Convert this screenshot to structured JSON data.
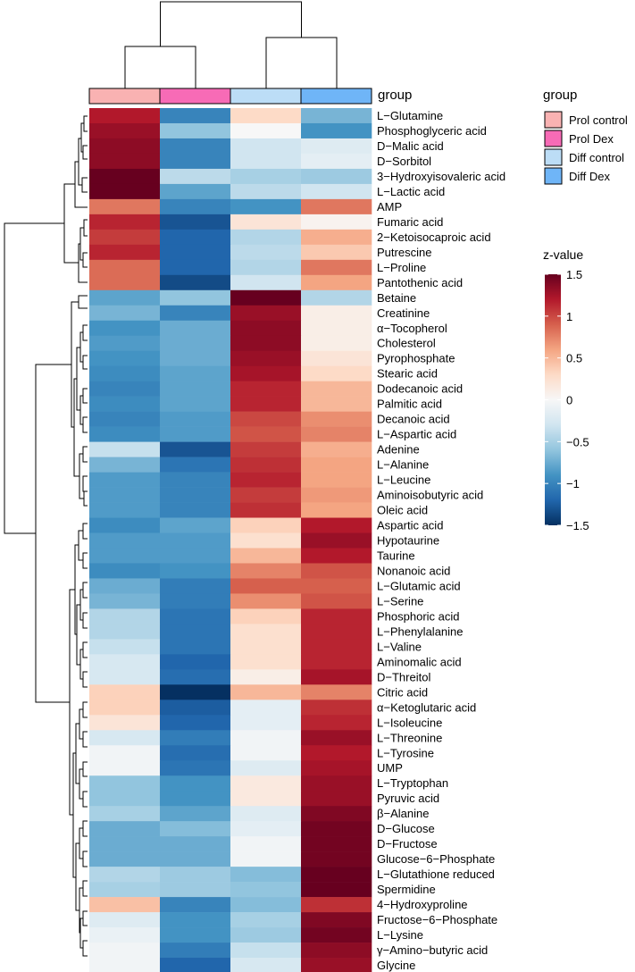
{
  "chart_data": {
    "type": "heatmap",
    "group_annotation_title": "group",
    "legend_group_title": "group",
    "columns": [
      "Prol control",
      "Prol Dex",
      "Diff control",
      "Diff Dex"
    ],
    "column_colors": [
      "#F9B2B2",
      "#F76BB6",
      "#BCDDF6",
      "#6FB5F7"
    ],
    "color_legend_title": "z-value",
    "color_scale": {
      "min": -1.5,
      "max": 1.5,
      "ticks": [
        -1.5,
        -1,
        -0.5,
        0,
        0.5,
        1,
        1.5
      ],
      "tick_labels": [
        "−1.5",
        "−1",
        "−0.5",
        "0",
        "0.5",
        "1",
        "1.5"
      ],
      "palette": [
        "#053061",
        "#2166AC",
        "#4393C3",
        "#92C5DE",
        "#D1E5F0",
        "#F7F7F7",
        "#FDDBC7",
        "#F4A582",
        "#D6604D",
        "#B2182B",
        "#67001F"
      ]
    },
    "rows": [
      {
        "name": "L−Glutamine",
        "values": [
          1.2,
          -1.0,
          0.3,
          -0.7
        ]
      },
      {
        "name": "Phosphoglyceric acid",
        "values": [
          1.3,
          -0.6,
          0.0,
          -0.9
        ]
      },
      {
        "name": "D−Malic acid",
        "values": [
          1.35,
          -1.0,
          -0.3,
          -0.2
        ]
      },
      {
        "name": "D−Sorbitol",
        "values": [
          1.35,
          -1.0,
          -0.3,
          -0.15
        ]
      },
      {
        "name": "3−Hydroxyisovaleric acid",
        "values": [
          1.5,
          -0.4,
          -0.5,
          -0.55
        ]
      },
      {
        "name": "L−Lactic acid",
        "values": [
          1.5,
          -0.8,
          -0.4,
          -0.3
        ]
      },
      {
        "name": "AMP",
        "values": [
          0.8,
          -1.0,
          -0.9,
          0.8
        ]
      },
      {
        "name": "Fumaric acid",
        "values": [
          1.15,
          -1.3,
          0.2,
          0.05
        ]
      },
      {
        "name": "2−Ketoisocaproic acid",
        "values": [
          1.05,
          -1.2,
          -0.45,
          0.55
        ]
      },
      {
        "name": "Putrescine",
        "values": [
          1.15,
          -1.2,
          -0.4,
          0.4
        ]
      },
      {
        "name": "L−Proline",
        "values": [
          0.85,
          -1.2,
          -0.45,
          0.8
        ]
      },
      {
        "name": "Pantothenic acid",
        "values": [
          0.85,
          -1.35,
          -0.3,
          0.6
        ]
      },
      {
        "name": "Betaine",
        "values": [
          -0.8,
          -0.6,
          1.5,
          -0.45
        ]
      },
      {
        "name": "Creatinine",
        "values": [
          -0.7,
          -1.0,
          1.3,
          0.1
        ]
      },
      {
        "name": "α−Tocopherol",
        "values": [
          -0.9,
          -0.75,
          1.35,
          0.1
        ]
      },
      {
        "name": "Cholesterol",
        "values": [
          -0.85,
          -0.75,
          1.35,
          0.1
        ]
      },
      {
        "name": "Pyrophosphate",
        "values": [
          -0.9,
          -0.75,
          1.3,
          0.2
        ]
      },
      {
        "name": "Stearic acid",
        "values": [
          -0.95,
          -0.8,
          1.25,
          0.3
        ]
      },
      {
        "name": "Dodecanoic acid",
        "values": [
          -1.0,
          -0.8,
          1.15,
          0.5
        ]
      },
      {
        "name": "Palmitic acid",
        "values": [
          -0.95,
          -0.8,
          1.15,
          0.5
        ]
      },
      {
        "name": "Decanoic acid",
        "values": [
          -1.0,
          -0.85,
          1.0,
          0.7
        ]
      },
      {
        "name": "L−Aspartic acid",
        "values": [
          -0.95,
          -0.85,
          0.95,
          0.75
        ]
      },
      {
        "name": "Adenine",
        "values": [
          -0.35,
          -1.3,
          1.05,
          0.55
        ]
      },
      {
        "name": "L−Alanine",
        "values": [
          -0.7,
          -1.1,
          1.1,
          0.6
        ]
      },
      {
        "name": "L−Leucine",
        "values": [
          -0.85,
          -1.0,
          1.15,
          0.6
        ]
      },
      {
        "name": "Aminoisobutyric acid",
        "values": [
          -0.85,
          -1.0,
          1.05,
          0.65
        ]
      },
      {
        "name": "Oleic acid",
        "values": [
          -0.85,
          -1.0,
          1.1,
          0.6
        ]
      },
      {
        "name": "Aspartic acid",
        "values": [
          -0.95,
          -0.8,
          0.35,
          1.2
        ]
      },
      {
        "name": "Hypotaurine",
        "values": [
          -0.85,
          -0.85,
          0.25,
          1.3
        ]
      },
      {
        "name": "Taurine",
        "values": [
          -0.85,
          -0.85,
          0.5,
          1.2
        ]
      },
      {
        "name": "Nonanoic acid",
        "values": [
          -0.95,
          -0.9,
          0.75,
          0.95
        ]
      },
      {
        "name": "L−Glutamic acid",
        "values": [
          -0.75,
          -1.05,
          0.9,
          0.9
        ]
      },
      {
        "name": "L−Serine",
        "values": [
          -0.7,
          -1.05,
          0.7,
          0.95
        ]
      },
      {
        "name": "Phosphoric acid",
        "values": [
          -0.45,
          -1.1,
          0.35,
          1.15
        ]
      },
      {
        "name": "L−Phenylalanine",
        "values": [
          -0.45,
          -1.1,
          0.25,
          1.15
        ]
      },
      {
        "name": "L−Valine",
        "values": [
          -0.35,
          -1.1,
          0.25,
          1.15
        ]
      },
      {
        "name": "Aminomalic acid",
        "values": [
          -0.25,
          -1.2,
          0.25,
          1.15
        ]
      },
      {
        "name": "D−Threitol",
        "values": [
          -0.25,
          -1.15,
          0.1,
          1.25
        ]
      },
      {
        "name": "Citric acid",
        "values": [
          0.35,
          -1.5,
          0.5,
          0.75
        ]
      },
      {
        "name": "α−Ketoglutaric acid",
        "values": [
          0.35,
          -1.25,
          -0.15,
          1.1
        ]
      },
      {
        "name": "L−Isoleucine",
        "values": [
          0.2,
          -1.2,
          -0.15,
          1.15
        ]
      },
      {
        "name": "L−Threonine",
        "values": [
          -0.25,
          -1.05,
          -0.05,
          1.3
        ]
      },
      {
        "name": "L−Tyrosine",
        "values": [
          -0.05,
          -1.15,
          -0.05,
          1.2
        ]
      },
      {
        "name": "UMP",
        "values": [
          -0.05,
          -1.1,
          -0.2,
          1.25
        ]
      },
      {
        "name": "L−Tryptophan",
        "values": [
          -0.6,
          -0.9,
          0.15,
          1.3
        ]
      },
      {
        "name": "Pyruvic acid",
        "values": [
          -0.6,
          -0.9,
          0.15,
          1.3
        ]
      },
      {
        "name": "β−Alanine",
        "values": [
          -0.5,
          -0.8,
          -0.2,
          1.4
        ]
      },
      {
        "name": "D−Glucose",
        "values": [
          -0.75,
          -0.65,
          -0.15,
          1.45
        ]
      },
      {
        "name": "D−Fructose",
        "values": [
          -0.75,
          -0.75,
          -0.05,
          1.45
        ]
      },
      {
        "name": "Glucose−6−Phosphate",
        "values": [
          -0.75,
          -0.75,
          -0.05,
          1.45
        ]
      },
      {
        "name": "L−Glutathione reduced",
        "values": [
          -0.45,
          -0.55,
          -0.65,
          1.5
        ]
      },
      {
        "name": "Spermidine",
        "values": [
          -0.5,
          -0.55,
          -0.6,
          1.5
        ]
      },
      {
        "name": "4−Hydroxyproline",
        "values": [
          0.45,
          -1.0,
          -0.65,
          1.1
        ]
      },
      {
        "name": "Fructose−6−Phosphate",
        "values": [
          -0.2,
          -0.9,
          -0.5,
          1.4
        ]
      },
      {
        "name": "L−Lysine",
        "values": [
          -0.1,
          -0.9,
          -0.55,
          1.45
        ]
      },
      {
        "name": "γ−Amino−butyric acid",
        "values": [
          -0.05,
          -1.05,
          -0.35,
          1.35
        ]
      },
      {
        "name": "Glycine",
        "values": [
          -0.05,
          -1.2,
          -0.25,
          1.3
        ]
      }
    ]
  }
}
